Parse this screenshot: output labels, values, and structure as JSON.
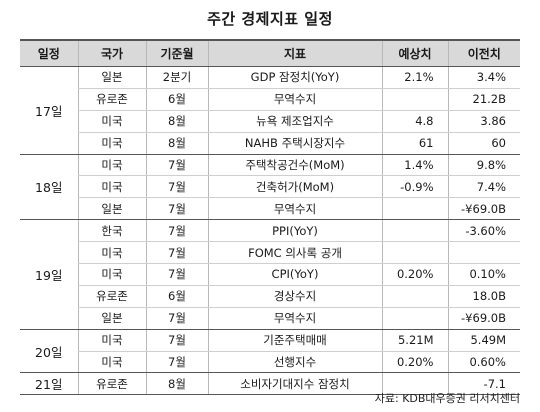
{
  "title": "주간 경제지표 일정",
  "headers": [
    "일정",
    "국가",
    "기준월",
    "지표",
    "예상치",
    "이전치"
  ],
  "groups": [
    {
      "day": "17일",
      "rows": [
        {
          "country": "일본",
          "period": "2분기",
          "indicator": "GDP 잠정치(YoY)",
          "forecast": "2.1%",
          "previous": "3.4%"
        },
        {
          "country": "유로존",
          "period": "6월",
          "indicator": "무역수지",
          "forecast": "",
          "previous": "21.2B"
        },
        {
          "country": "미국",
          "period": "8월",
          "indicator": "뉴욕 제조업지수",
          "forecast": "4.8",
          "previous": "3.86"
        },
        {
          "country": "미국",
          "period": "8월",
          "indicator": "NAHB 주택시장지수",
          "forecast": "61",
          "previous": "60"
        }
      ]
    },
    {
      "day": "18일",
      "rows": [
        {
          "country": "미국",
          "period": "7월",
          "indicator": "주택착공건수(MoM)",
          "forecast": "1.4%",
          "previous": "9.8%"
        },
        {
          "country": "미국",
          "period": "7월",
          "indicator": "건축허가(MoM)",
          "forecast": "-0.9%",
          "previous": "7.4%"
        },
        {
          "country": "일본",
          "period": "7월",
          "indicator": "무역수지",
          "forecast": "",
          "previous": "-¥69.0B"
        }
      ]
    },
    {
      "day": "19일",
      "rows": [
        {
          "country": "한국",
          "period": "7월",
          "indicator": "PPI(YoY)",
          "forecast": "",
          "previous": "-3.60%"
        },
        {
          "country": "미국",
          "period": "7월",
          "indicator": "FOMC 의사록 공개",
          "forecast": "",
          "previous": ""
        },
        {
          "country": "미국",
          "period": "7월",
          "indicator": "CPI(YoY)",
          "forecast": "0.20%",
          "previous": "0.10%"
        },
        {
          "country": "유로존",
          "period": "6월",
          "indicator": "경상수지",
          "forecast": "",
          "previous": "18.0B"
        },
        {
          "country": "일본",
          "period": "7월",
          "indicator": "무역수지",
          "forecast": "",
          "previous": "-¥69.0B"
        }
      ]
    },
    {
      "day": "20일",
      "rows": [
        {
          "country": "미국",
          "period": "7월",
          "indicator": "기준주택매매",
          "forecast": "5.21M",
          "previous": "5.49M"
        },
        {
          "country": "미국",
          "period": "7월",
          "indicator": "선행지수",
          "forecast": "0.20%",
          "previous": "0.60%"
        }
      ]
    },
    {
      "day": "21일",
      "rows": [
        {
          "country": "유로존",
          "period": "8월",
          "indicator": "소비자기대지수 잠정치",
          "forecast": "",
          "previous": "-7.1"
        }
      ]
    }
  ],
  "source": "자료: KDB대우증권 리서치센터"
}
